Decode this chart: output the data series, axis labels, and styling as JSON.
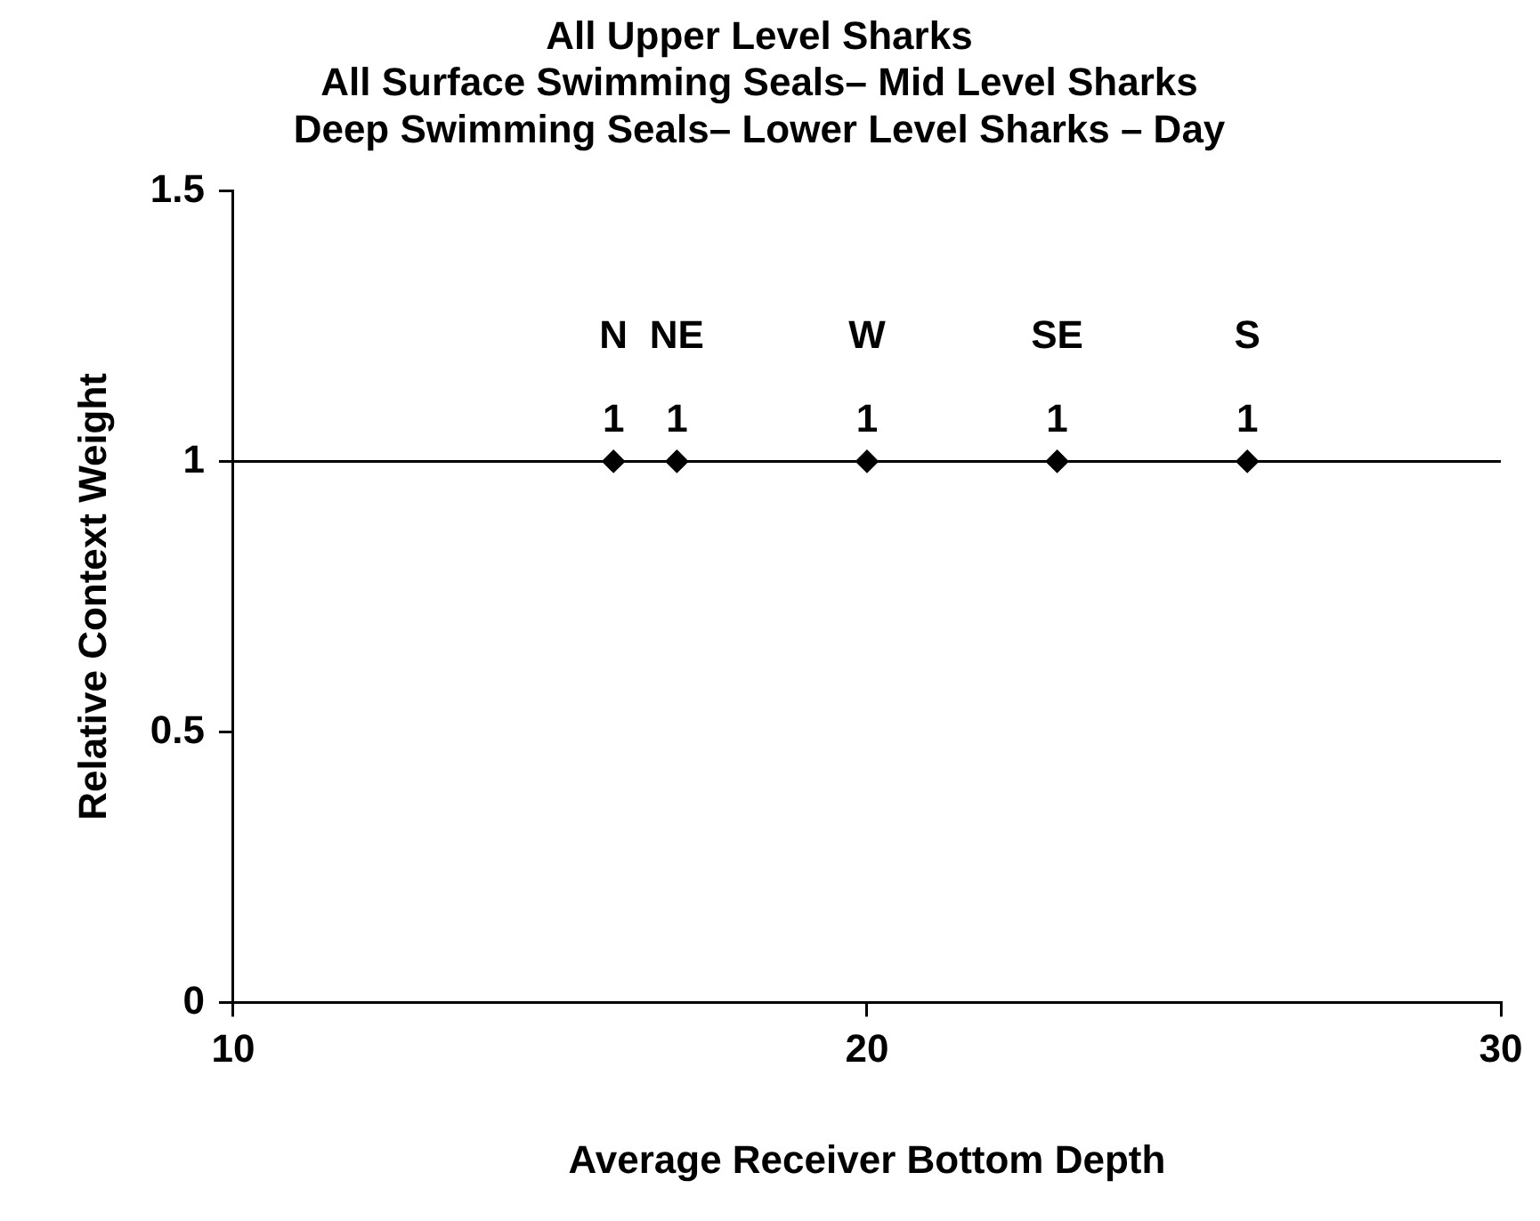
{
  "chart_data": {
    "type": "scatter",
    "title": [
      "All Upper Level Sharks",
      "All Surface Swimming Seals– Mid Level Sharks",
      "Deep Swimming Seals– Lower Level Sharks – Day"
    ],
    "xlabel": "Average Receiver Bottom Depth",
    "ylabel": "Relative Context Weight",
    "x": [
      16,
      17,
      20,
      23,
      26
    ],
    "series": [
      {
        "color": "#000000",
        "values": [
          1,
          1,
          1,
          1,
          1
        ]
      }
    ],
    "data_labels": true,
    "marker": "diamond",
    "grid": false,
    "legend": false,
    "xlim": [
      10,
      30
    ],
    "xticks": [
      10,
      20,
      30
    ],
    "ylim": [
      0,
      1.5
    ],
    "yticks": [
      0,
      0.5,
      1,
      1.5
    ],
    "ref_lines": [
      {
        "axis": "y",
        "value": 1,
        "color": "#000000"
      }
    ],
    "annotations": [
      "N",
      "NE",
      "W",
      "SE",
      "S"
    ]
  }
}
